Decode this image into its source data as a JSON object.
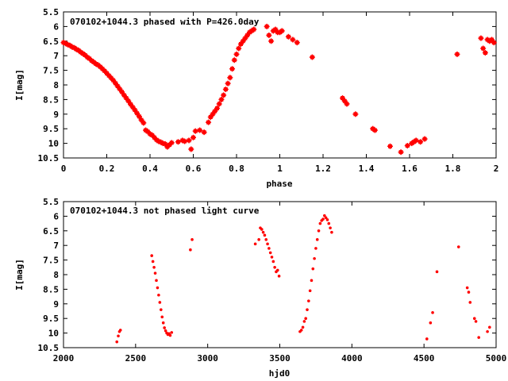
{
  "chart_data": [
    {
      "type": "scatter",
      "title": "070102+1044.3 phased with P=426.0day",
      "xlabel": "phase",
      "ylabel": "I[mag]",
      "xlim": [
        0,
        2
      ],
      "ylim": [
        5.5,
        10.5
      ],
      "y_inverted": true,
      "x_ticks": [
        "0",
        "0.2",
        "0.4",
        "0.6",
        "0.8",
        "1",
        "1.2",
        "1.4",
        "1.6",
        "1.8",
        "2"
      ],
      "x_tick_values": [
        0,
        0.2,
        0.4,
        0.6,
        0.8,
        1.0,
        1.2,
        1.4,
        1.6,
        1.8,
        2.0
      ],
      "y_ticks": [
        "5.5",
        "6",
        "6.5",
        "7",
        "7.5",
        "8",
        "8.5",
        "9",
        "9.5",
        "10",
        "10.5"
      ],
      "y_tick_values": [
        5.5,
        6,
        6.5,
        7,
        7.5,
        8,
        8.5,
        9,
        9.5,
        10,
        10.5
      ],
      "marker_color": "#ff0000",
      "grid": false,
      "points": [
        [
          0.0,
          6.55
        ],
        [
          0.01,
          6.58
        ],
        [
          0.02,
          6.62
        ],
        [
          0.03,
          6.65
        ],
        [
          0.04,
          6.7
        ],
        [
          0.05,
          6.73
        ],
        [
          0.06,
          6.78
        ],
        [
          0.07,
          6.82
        ],
        [
          0.08,
          6.88
        ],
        [
          0.09,
          6.93
        ],
        [
          0.1,
          6.98
        ],
        [
          0.11,
          7.05
        ],
        [
          0.12,
          7.1
        ],
        [
          0.13,
          7.17
        ],
        [
          0.14,
          7.22
        ],
        [
          0.15,
          7.28
        ],
        [
          0.16,
          7.32
        ],
        [
          0.17,
          7.38
        ],
        [
          0.18,
          7.45
        ],
        [
          0.19,
          7.52
        ],
        [
          0.2,
          7.6
        ],
        [
          0.21,
          7.68
        ],
        [
          0.22,
          7.76
        ],
        [
          0.23,
          7.84
        ],
        [
          0.24,
          7.94
        ],
        [
          0.25,
          8.04
        ],
        [
          0.26,
          8.14
        ],
        [
          0.27,
          8.24
        ],
        [
          0.28,
          8.35
        ],
        [
          0.29,
          8.45
        ],
        [
          0.3,
          8.55
        ],
        [
          0.31,
          8.66
        ],
        [
          0.32,
          8.76
        ],
        [
          0.33,
          8.86
        ],
        [
          0.34,
          8.97
        ],
        [
          0.35,
          9.08
        ],
        [
          0.36,
          9.2
        ],
        [
          0.37,
          9.3
        ],
        [
          0.38,
          9.55
        ],
        [
          0.39,
          9.6
        ],
        [
          0.4,
          9.68
        ],
        [
          0.41,
          9.72
        ],
        [
          0.42,
          9.8
        ],
        [
          0.43,
          9.88
        ],
        [
          0.44,
          9.93
        ],
        [
          0.45,
          9.96
        ],
        [
          0.46,
          10.0
        ],
        [
          0.47,
          10.02
        ],
        [
          0.48,
          10.12
        ],
        [
          0.49,
          10.05
        ],
        [
          0.5,
          9.98
        ],
        [
          0.53,
          9.95
        ],
        [
          0.55,
          9.9
        ],
        [
          0.56,
          9.93
        ],
        [
          0.58,
          9.9
        ],
        [
          0.59,
          10.2
        ],
        [
          0.6,
          9.8
        ],
        [
          0.61,
          9.58
        ],
        [
          0.63,
          9.55
        ],
        [
          0.65,
          9.62
        ],
        [
          0.67,
          9.28
        ],
        [
          0.68,
          9.1
        ],
        [
          0.69,
          9.0
        ],
        [
          0.7,
          8.9
        ],
        [
          0.71,
          8.8
        ],
        [
          0.72,
          8.65
        ],
        [
          0.73,
          8.5
        ],
        [
          0.74,
          8.35
        ],
        [
          0.75,
          8.15
        ],
        [
          0.76,
          7.95
        ],
        [
          0.77,
          7.75
        ],
        [
          0.78,
          7.45
        ],
        [
          0.79,
          7.15
        ],
        [
          0.8,
          6.95
        ],
        [
          0.81,
          6.75
        ],
        [
          0.82,
          6.6
        ],
        [
          0.83,
          6.5
        ],
        [
          0.84,
          6.4
        ],
        [
          0.85,
          6.3
        ],
        [
          0.86,
          6.2
        ],
        [
          0.87,
          6.15
        ],
        [
          0.88,
          6.1
        ],
        [
          0.94,
          6.0
        ],
        [
          0.95,
          6.3
        ],
        [
          0.96,
          6.5
        ],
        [
          0.97,
          6.15
        ],
        [
          0.98,
          6.1
        ],
        [
          0.99,
          6.2
        ],
        [
          1.0,
          6.2
        ],
        [
          1.01,
          6.15
        ],
        [
          1.04,
          6.35
        ],
        [
          1.06,
          6.45
        ],
        [
          1.08,
          6.55
        ],
        [
          1.15,
          7.05
        ],
        [
          1.29,
          8.45
        ],
        [
          1.3,
          8.55
        ],
        [
          1.31,
          8.65
        ],
        [
          1.35,
          9.0
        ],
        [
          1.43,
          9.5
        ],
        [
          1.44,
          9.55
        ],
        [
          1.51,
          10.1
        ],
        [
          1.56,
          10.3
        ],
        [
          1.59,
          10.08
        ],
        [
          1.61,
          10.0
        ],
        [
          1.62,
          9.95
        ],
        [
          1.63,
          9.9
        ],
        [
          1.65,
          9.95
        ],
        [
          1.67,
          9.85
        ],
        [
          1.82,
          6.95
        ],
        [
          1.93,
          6.4
        ],
        [
          1.94,
          6.75
        ],
        [
          1.95,
          6.9
        ],
        [
          1.96,
          6.45
        ],
        [
          1.97,
          6.5
        ],
        [
          1.98,
          6.45
        ],
        [
          1.99,
          6.55
        ]
      ]
    },
    {
      "type": "scatter",
      "title": "070102+1044.3 not phased light curve",
      "xlabel": "hjd0",
      "ylabel": "I[mag]",
      "xlim": [
        2000,
        5000
      ],
      "ylim": [
        5.5,
        10.5
      ],
      "y_inverted": true,
      "x_ticks": [
        "2000",
        "2500",
        "3000",
        "3500",
        "4000",
        "4500",
        "5000"
      ],
      "x_tick_values": [
        2000,
        2500,
        3000,
        3500,
        4000,
        4500,
        5000
      ],
      "y_ticks": [
        "5.5",
        "6",
        "6.5",
        "7",
        "7.5",
        "8",
        "8.5",
        "9",
        "9.5",
        "10",
        "10.5"
      ],
      "y_tick_values": [
        5.5,
        6,
        6.5,
        7,
        7.5,
        8,
        8.5,
        9,
        9.5,
        10,
        10.5
      ],
      "marker_color": "#ff0000",
      "grid": false,
      "points": [
        [
          2370,
          10.3
        ],
        [
          2380,
          10.1
        ],
        [
          2388,
          9.95
        ],
        [
          2395,
          9.9
        ],
        [
          2612,
          7.35
        ],
        [
          2620,
          7.55
        ],
        [
          2628,
          7.75
        ],
        [
          2636,
          7.95
        ],
        [
          2644,
          8.2
        ],
        [
          2652,
          8.45
        ],
        [
          2660,
          8.7
        ],
        [
          2668,
          8.95
        ],
        [
          2676,
          9.2
        ],
        [
          2684,
          9.45
        ],
        [
          2692,
          9.65
        ],
        [
          2700,
          9.82
        ],
        [
          2708,
          9.92
        ],
        [
          2716,
          10.0
        ],
        [
          2724,
          10.05
        ],
        [
          2732,
          10.02
        ],
        [
          2740,
          10.08
        ],
        [
          2750,
          9.98
        ],
        [
          2880,
          7.15
        ],
        [
          2892,
          6.8
        ],
        [
          3330,
          6.95
        ],
        [
          3355,
          6.8
        ],
        [
          3365,
          6.4
        ],
        [
          3375,
          6.45
        ],
        [
          3385,
          6.55
        ],
        [
          3395,
          6.65
        ],
        [
          3405,
          6.8
        ],
        [
          3415,
          6.95
        ],
        [
          3425,
          7.1
        ],
        [
          3435,
          7.25
        ],
        [
          3445,
          7.4
        ],
        [
          3455,
          7.55
        ],
        [
          3465,
          7.75
        ],
        [
          3475,
          7.9
        ],
        [
          3485,
          7.85
        ],
        [
          3495,
          8.05
        ],
        [
          3640,
          9.95
        ],
        [
          3650,
          9.9
        ],
        [
          3660,
          9.8
        ],
        [
          3670,
          9.6
        ],
        [
          3680,
          9.5
        ],
        [
          3690,
          9.2
        ],
        [
          3700,
          8.9
        ],
        [
          3710,
          8.55
        ],
        [
          3720,
          8.2
        ],
        [
          3730,
          7.8
        ],
        [
          3740,
          7.45
        ],
        [
          3750,
          7.1
        ],
        [
          3760,
          6.8
        ],
        [
          3770,
          6.5
        ],
        [
          3780,
          6.25
        ],
        [
          3790,
          6.15
        ],
        [
          3800,
          6.1
        ],
        [
          3810,
          5.98
        ],
        [
          3820,
          6.05
        ],
        [
          3830,
          6.12
        ],
        [
          3840,
          6.25
        ],
        [
          3850,
          6.4
        ],
        [
          3860,
          6.55
        ],
        [
          4520,
          10.2
        ],
        [
          4545,
          9.65
        ],
        [
          4560,
          9.3
        ],
        [
          4590,
          7.9
        ],
        [
          4740,
          7.05
        ],
        [
          4800,
          8.45
        ],
        [
          4810,
          8.6
        ],
        [
          4820,
          8.95
        ],
        [
          4850,
          9.5
        ],
        [
          4860,
          9.6
        ],
        [
          4880,
          10.15
        ],
        [
          4940,
          9.95
        ],
        [
          4955,
          9.8
        ]
      ]
    }
  ]
}
